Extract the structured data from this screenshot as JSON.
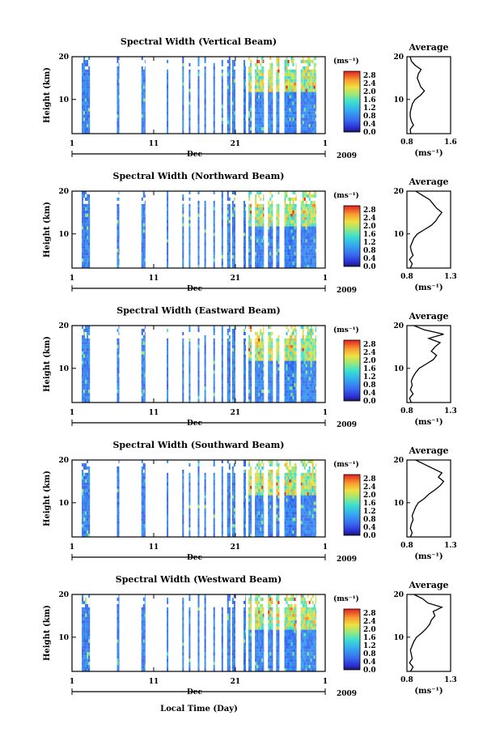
{
  "figure": {
    "xlabel": "Local Time (Day)",
    "colorbar_unit": "(ms⁻¹)",
    "colorbar_ticks": [
      "0.0",
      "0.4",
      "0.8",
      "1.2",
      "1.6",
      "2.0",
      "2.4",
      "2.8"
    ],
    "avg_title": "Average",
    "avg_xlabel": "(ms⁻¹)"
  },
  "chart_data": [
    {
      "type": "heatmap",
      "title": "Spectral Width (Vertical Beam)",
      "ylabel": "Height (km)",
      "yticks": [
        "10",
        "20"
      ],
      "xticks": [
        "1",
        "11",
        "21",
        "1"
      ],
      "month": "Dec",
      "year": "2009",
      "ylim": [
        2,
        20
      ],
      "clim": [
        0.0,
        3.0
      ],
      "observation_days": [
        [
          2.2,
          3.2
        ],
        [
          6.5,
          6.8
        ],
        [
          9.5,
          10.0
        ],
        [
          12.6,
          12.8
        ],
        [
          14.5,
          14.7
        ],
        [
          15.3,
          15.5
        ],
        [
          16.4,
          16.6
        ],
        [
          17.2,
          17.4
        ],
        [
          18.3,
          18.5
        ],
        [
          19.3,
          19.5
        ],
        [
          20.0,
          20.4
        ],
        [
          20.6,
          21.0
        ],
        [
          22.0,
          22.3
        ],
        [
          22.6,
          23.0
        ],
        [
          23.4,
          24.5
        ],
        [
          25.0,
          25.6
        ],
        [
          26.0,
          26.4
        ],
        [
          27.0,
          28.5
        ],
        [
          29.0,
          30.9
        ]
      ],
      "average_profile": {
        "title": "Average",
        "xlabel": "(ms⁻¹)",
        "xticks": [
          "0.8",
          "1.6"
        ],
        "xlim": [
          0.8,
          1.6
        ],
        "yticks": [
          "10",
          "20"
        ],
        "ylim": [
          2,
          20
        ],
        "height_km": [
          2,
          3,
          4,
          5,
          6,
          7,
          8,
          9,
          10,
          11,
          12,
          13,
          14,
          15,
          16,
          17,
          18,
          19,
          20
        ],
        "width_ms": [
          0.87,
          0.86,
          0.92,
          0.88,
          0.86,
          0.86,
          0.88,
          0.9,
          0.95,
          1.05,
          1.12,
          1.05,
          1.02,
          0.99,
          1.01,
          1.06,
          0.95,
          0.88,
          0.86
        ]
      }
    },
    {
      "type": "heatmap",
      "title": "Spectral Width (Northward Beam)",
      "ylabel": "Height (km)",
      "yticks": [
        "10",
        "20"
      ],
      "xticks": [
        "1",
        "11",
        "21",
        "1"
      ],
      "month": "Dec",
      "year": "2009",
      "ylim": [
        2,
        20
      ],
      "clim": [
        0.0,
        3.0
      ],
      "observation_days": [
        [
          2.2,
          3.2
        ],
        [
          6.5,
          6.8
        ],
        [
          9.5,
          10.0
        ],
        [
          12.6,
          12.8
        ],
        [
          14.5,
          14.7
        ],
        [
          15.3,
          15.5
        ],
        [
          16.4,
          16.6
        ],
        [
          17.2,
          17.4
        ],
        [
          18.3,
          18.5
        ],
        [
          19.3,
          19.5
        ],
        [
          20.0,
          20.4
        ],
        [
          20.6,
          21.0
        ],
        [
          22.0,
          22.3
        ],
        [
          22.6,
          23.0
        ],
        [
          23.4,
          24.5
        ],
        [
          25.0,
          25.6
        ],
        [
          26.0,
          26.4
        ],
        [
          27.0,
          28.5
        ],
        [
          29.0,
          30.9
        ]
      ],
      "average_profile": {
        "title": "Average",
        "xlabel": "(ms⁻¹)",
        "xticks": [
          "0.8",
          "1.3"
        ],
        "xlim": [
          0.8,
          1.3
        ],
        "yticks": [
          "10",
          "20"
        ],
        "ylim": [
          2,
          20
        ],
        "height_km": [
          2,
          3,
          4,
          5,
          6,
          7,
          8,
          9,
          10,
          11,
          12,
          13,
          14,
          15,
          16,
          17,
          18,
          19,
          20
        ],
        "width_ms": [
          0.84,
          0.86,
          0.83,
          0.87,
          0.85,
          0.84,
          0.86,
          0.88,
          0.92,
          1.0,
          1.08,
          1.13,
          1.16,
          1.2,
          1.14,
          1.1,
          1.06,
          0.98,
          0.9
        ]
      }
    },
    {
      "type": "heatmap",
      "title": "Spectral Width (Eastward Beam)",
      "ylabel": "Height (km)",
      "yticks": [
        "10",
        "20"
      ],
      "xticks": [
        "1",
        "11",
        "21",
        "1"
      ],
      "month": "Dec",
      "year": "2009",
      "ylim": [
        2,
        20
      ],
      "clim": [
        0.0,
        3.0
      ],
      "observation_days": [
        [
          2.2,
          3.2
        ],
        [
          6.5,
          6.8
        ],
        [
          9.5,
          10.0
        ],
        [
          12.6,
          12.8
        ],
        [
          14.5,
          14.7
        ],
        [
          15.3,
          15.5
        ],
        [
          16.4,
          16.6
        ],
        [
          17.2,
          17.4
        ],
        [
          18.3,
          18.5
        ],
        [
          19.3,
          19.5
        ],
        [
          20.0,
          20.4
        ],
        [
          20.6,
          21.0
        ],
        [
          22.0,
          22.3
        ],
        [
          22.6,
          23.0
        ],
        [
          23.4,
          24.5
        ],
        [
          25.0,
          25.6
        ],
        [
          26.0,
          26.4
        ],
        [
          27.0,
          28.5
        ],
        [
          29.0,
          30.9
        ]
      ],
      "average_profile": {
        "title": "Average",
        "xlabel": "(ms⁻¹)",
        "xticks": [
          "0.8",
          "1.3"
        ],
        "xlim": [
          0.8,
          1.3
        ],
        "yticks": [
          "10",
          "20"
        ],
        "ylim": [
          2,
          20
        ],
        "height_km": [
          2,
          3,
          4,
          5,
          6,
          7,
          8,
          9,
          10,
          11,
          12,
          13,
          14,
          15,
          16,
          17,
          18,
          19,
          20
        ],
        "width_ms": [
          0.85,
          0.83,
          0.87,
          0.84,
          0.86,
          0.85,
          0.87,
          0.9,
          0.94,
          1.02,
          1.1,
          1.14,
          1.08,
          1.12,
          1.18,
          1.05,
          1.22,
          1.0,
          0.88
        ]
      }
    },
    {
      "type": "heatmap",
      "title": "Spectral Width (Southward Beam)",
      "ylabel": "Height (km)",
      "yticks": [
        "10",
        "20"
      ],
      "xticks": [
        "1",
        "11",
        "21",
        "1"
      ],
      "month": "Dec",
      "year": "2009",
      "ylim": [
        2,
        20
      ],
      "clim": [
        0.0,
        3.0
      ],
      "observation_days": [
        [
          2.2,
          3.2
        ],
        [
          6.5,
          6.8
        ],
        [
          9.5,
          10.0
        ],
        [
          12.6,
          12.8
        ],
        [
          14.5,
          14.7
        ],
        [
          15.3,
          15.5
        ],
        [
          16.4,
          16.6
        ],
        [
          17.2,
          17.4
        ],
        [
          18.3,
          18.5
        ],
        [
          19.3,
          19.5
        ],
        [
          20.0,
          20.4
        ],
        [
          20.6,
          21.0
        ],
        [
          22.0,
          22.3
        ],
        [
          22.6,
          23.0
        ],
        [
          23.4,
          24.5
        ],
        [
          25.0,
          25.6
        ],
        [
          26.0,
          26.4
        ],
        [
          27.0,
          28.5
        ],
        [
          29.0,
          30.9
        ]
      ],
      "average_profile": {
        "title": "Average",
        "xlabel": "(ms⁻¹)",
        "xticks": [
          "0.8",
          "1.3"
        ],
        "xlim": [
          0.8,
          1.3
        ],
        "yticks": [
          "10",
          "20"
        ],
        "ylim": [
          2,
          20
        ],
        "height_km": [
          2,
          3,
          4,
          5,
          6,
          7,
          8,
          9,
          10,
          11,
          12,
          13,
          14,
          15,
          16,
          17,
          18,
          19,
          20
        ],
        "width_ms": [
          0.84,
          0.86,
          0.84,
          0.85,
          0.87,
          0.86,
          0.88,
          0.9,
          0.93,
          1.0,
          1.05,
          1.12,
          1.18,
          1.22,
          1.16,
          1.2,
          1.1,
          1.0,
          0.9
        ]
      }
    },
    {
      "type": "heatmap",
      "title": "Spectral Width (Westward Beam)",
      "ylabel": "Height (km)",
      "yticks": [
        "10",
        "20"
      ],
      "xticks": [
        "1",
        "11",
        "21",
        "1"
      ],
      "month": "Dec",
      "year": "2009",
      "ylim": [
        2,
        20
      ],
      "clim": [
        0.0,
        3.0
      ],
      "observation_days": [
        [
          2.2,
          3.2
        ],
        [
          6.5,
          6.8
        ],
        [
          9.5,
          10.0
        ],
        [
          12.6,
          12.8
        ],
        [
          14.5,
          14.7
        ],
        [
          15.3,
          15.5
        ],
        [
          16.4,
          16.6
        ],
        [
          17.2,
          17.4
        ],
        [
          18.3,
          18.5
        ],
        [
          19.3,
          19.5
        ],
        [
          20.0,
          20.4
        ],
        [
          20.6,
          21.0
        ],
        [
          22.0,
          22.3
        ],
        [
          22.6,
          23.0
        ],
        [
          23.4,
          24.5
        ],
        [
          25.0,
          25.6
        ],
        [
          26.0,
          26.4
        ],
        [
          27.0,
          28.5
        ],
        [
          29.0,
          30.9
        ]
      ],
      "average_profile": {
        "title": "Average",
        "xlabel": "(ms⁻¹)",
        "xticks": [
          "0.8",
          "1.3"
        ],
        "xlim": [
          0.8,
          1.3
        ],
        "yticks": [
          "10",
          "20"
        ],
        "ylim": [
          2,
          20
        ],
        "height_km": [
          2,
          3,
          4,
          5,
          6,
          7,
          8,
          9,
          10,
          11,
          12,
          13,
          14,
          15,
          16,
          17,
          18,
          19,
          20
        ],
        "width_ms": [
          0.84,
          0.87,
          0.83,
          0.86,
          0.85,
          0.84,
          0.86,
          0.88,
          0.91,
          0.97,
          1.02,
          1.06,
          1.08,
          1.12,
          1.1,
          1.2,
          1.04,
          0.98,
          0.88
        ]
      }
    }
  ]
}
